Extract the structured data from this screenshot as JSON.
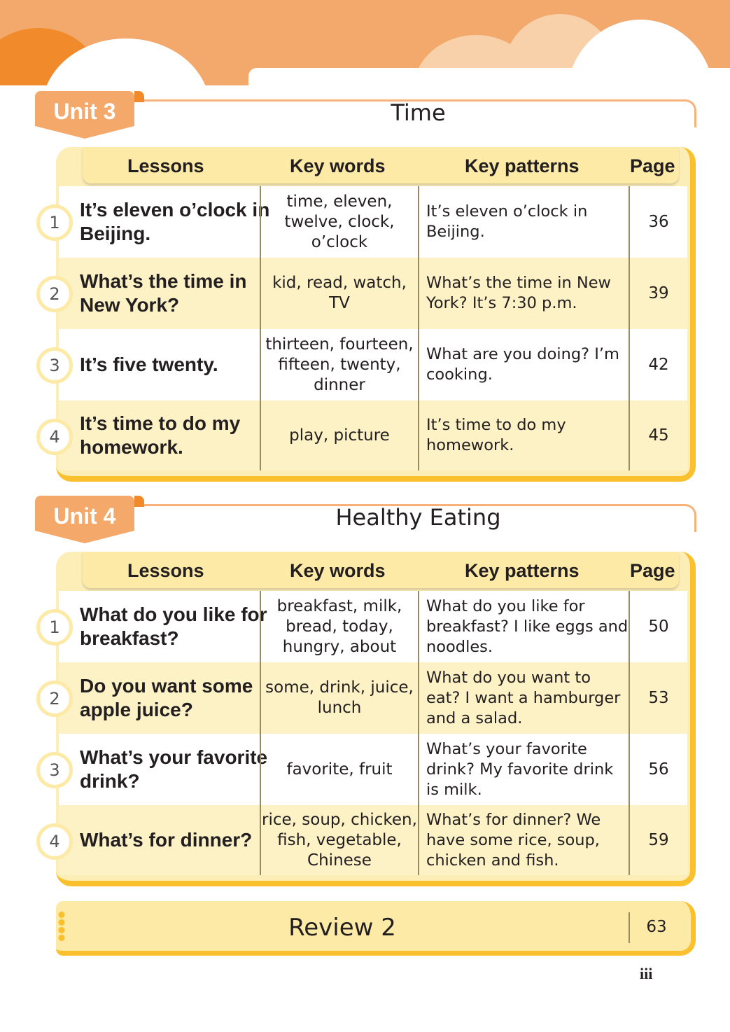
{
  "headers": {
    "lessons": "Lessons",
    "key_words": "Key words",
    "key_patterns": "Key patterns",
    "page": "Page"
  },
  "units": [
    {
      "label": "Unit 3",
      "title": "Time",
      "lessons": [
        {
          "num": "1",
          "title": "It’s eleven o’clock in Beijing.",
          "key_words": "time, eleven, twelve, clock, o’clock",
          "key_patterns": "It’s eleven o’clock in Beijing.",
          "page": "36"
        },
        {
          "num": "2",
          "title": "What’s the time in New York?",
          "key_words": "kid, read, watch, TV",
          "key_patterns": "What’s the time in New York? It’s 7:30 p.m.",
          "page": "39"
        },
        {
          "num": "3",
          "title": "It’s five twenty.",
          "key_words": "thirteen, fourteen, fifteen, twenty, dinner",
          "key_patterns": "What are you doing? I’m cooking.",
          "page": "42"
        },
        {
          "num": "4",
          "title": "It’s time to do my homework.",
          "key_words": "play, picture",
          "key_patterns": "It’s time to do my homework.",
          "page": "45"
        }
      ]
    },
    {
      "label": "Unit 4",
      "title": "Healthy Eating",
      "lessons": [
        {
          "num": "1",
          "title": "What do you like for breakfast?",
          "key_words": "breakfast, milk, bread, today, hungry, about",
          "key_patterns": "What do you like for breakfast? I like eggs and noodles.",
          "page": "50"
        },
        {
          "num": "2",
          "title": "Do you want some apple juice?",
          "key_words": "some, drink, juice, lunch",
          "key_patterns": "What do you want to eat? I want a hamburger and a salad.",
          "page": "53"
        },
        {
          "num": "3",
          "title": "What’s your favorite drink?",
          "key_words": "favorite, fruit",
          "key_patterns": "What’s your favorite drink? My favorite drink is milk.",
          "page": "56"
        },
        {
          "num": "4",
          "title": "What’s for dinner?",
          "key_words": "rice, soup, chicken, fish, vegetable, Chinese",
          "key_patterns": "What’s for dinner? We have some rice, soup, chicken and fish.",
          "page": "59"
        }
      ]
    }
  ],
  "review": {
    "title": "Review 2",
    "page": "63"
  },
  "page_number": "iii",
  "colors": {
    "banner": "#f2a96b",
    "unit_tag": "#f4a96a",
    "table": "#fdeeb8",
    "accent": "#fbc02d"
  }
}
